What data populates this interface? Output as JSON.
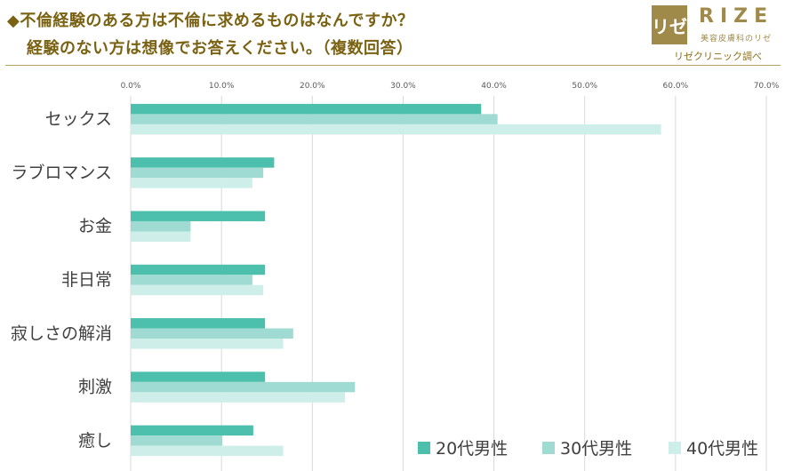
{
  "header": {
    "question_line1": "◆不倫経験のある方は不倫に求めるものはなんですか？",
    "question_line2": "経験のない方は想像でお答えください。（複数回答）",
    "logo_mark": "リゼ",
    "logo_word": "RIZE",
    "logo_sub": "美容皮膚科のリゼ",
    "source": "リゼクリニック調べ"
  },
  "chart_data": {
    "type": "bar",
    "orientation": "horizontal",
    "categories": [
      "セックス",
      "ラブロマンス",
      "お金",
      "非日常",
      "寂しさの解消",
      "刺激",
      "癒し"
    ],
    "series": [
      {
        "name": "20代男性",
        "color": "#4dbfad",
        "values": [
          38.6,
          15.8,
          14.8,
          14.8,
          14.8,
          14.8,
          13.5
        ]
      },
      {
        "name": "30代男性",
        "color": "#9fdbd2",
        "values": [
          40.4,
          14.6,
          6.6,
          13.4,
          17.9,
          24.7,
          10.1
        ]
      },
      {
        "name": "40代男性",
        "color": "#cdeee9",
        "values": [
          58.4,
          13.4,
          6.6,
          14.6,
          16.8,
          23.6,
          16.8
        ]
      }
    ],
    "xlim": [
      0,
      70
    ],
    "xticks": [
      "0.0%",
      "10.0%",
      "20.0%",
      "30.0%",
      "40.0%",
      "50.0%",
      "60.0%",
      "70.0%"
    ],
    "grid": true,
    "legend_position": "bottom-right"
  }
}
